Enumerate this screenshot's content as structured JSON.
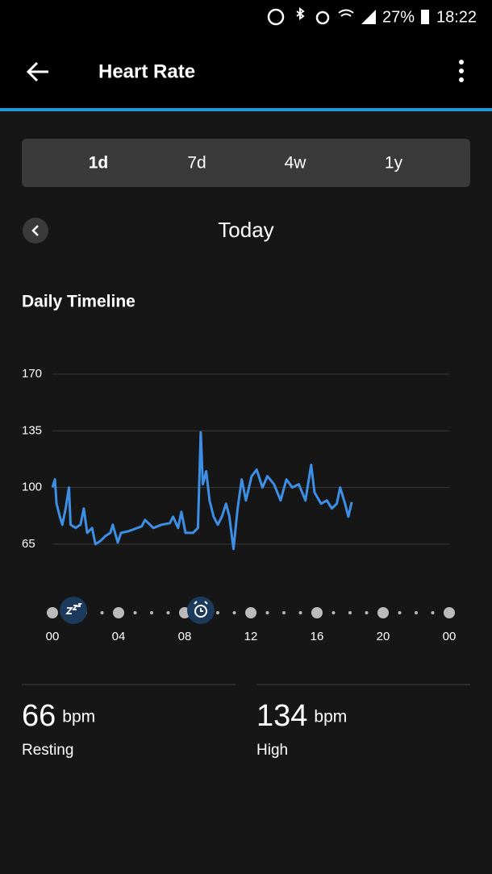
{
  "status_bar": {
    "battery": "27%",
    "time": "18:22"
  },
  "header": {
    "title": "Heart Rate"
  },
  "tabs": [
    "1d",
    "7d",
    "4w",
    "1y"
  ],
  "date_nav": {
    "label": "Today"
  },
  "chart_data": {
    "type": "line",
    "title": "Daily Timeline",
    "x": [
      0,
      0.15,
      0.25,
      0.45,
      0.6,
      0.8,
      1.0,
      1.1,
      1.4,
      1.7,
      1.9,
      2.1,
      2.4,
      2.6,
      2.9,
      3.2,
      3.5,
      3.65,
      3.95,
      4.15,
      4.6,
      5.4,
      5.6,
      6.1,
      6.6,
      7.1,
      7.3,
      7.6,
      7.8,
      8.05,
      8.5,
      8.8,
      8.97,
      9.1,
      9.3,
      9.5,
      9.75,
      10.0,
      10.25,
      10.5,
      10.7,
      10.95,
      11.2,
      11.45,
      11.7,
      12.05,
      12.35,
      12.7,
      13.0,
      13.4,
      13.8,
      14.15,
      14.5,
      14.9,
      15.3,
      15.65,
      15.85,
      16.25,
      16.6,
      16.9,
      17.2,
      17.4,
      17.7,
      17.9,
      18.1
    ],
    "values": [
      100,
      105,
      90,
      82,
      77,
      87,
      100,
      77,
      75,
      77,
      87,
      72,
      75,
      65,
      67,
      70,
      72,
      77,
      66,
      72,
      73,
      76,
      80,
      75,
      77,
      78,
      82,
      75,
      85,
      72,
      72,
      75,
      134,
      102,
      110,
      92,
      82,
      77,
      82,
      90,
      82,
      62,
      87,
      105,
      92,
      107,
      111,
      100,
      107,
      102,
      92,
      105,
      100,
      102,
      92,
      114,
      97,
      90,
      92,
      87,
      90,
      100,
      90,
      82,
      91
    ],
    "color": "#3d8fe6",
    "xlim": [
      0,
      24
    ],
    "xticks": [
      {
        "value": 0,
        "label": "00"
      },
      {
        "value": 4,
        "label": "04"
      },
      {
        "value": 8,
        "label": "08"
      },
      12,
      16,
      20,
      {
        "value": 24,
        "label": "00"
      }
    ],
    "ylim": [
      55,
      175
    ],
    "yticks": [
      65,
      100,
      135,
      170
    ],
    "grid": true
  },
  "stats": [
    {
      "value": 66,
      "unit": "bpm",
      "label": "Resting"
    },
    {
      "value": 134,
      "unit": "bpm",
      "label": "High"
    }
  ]
}
